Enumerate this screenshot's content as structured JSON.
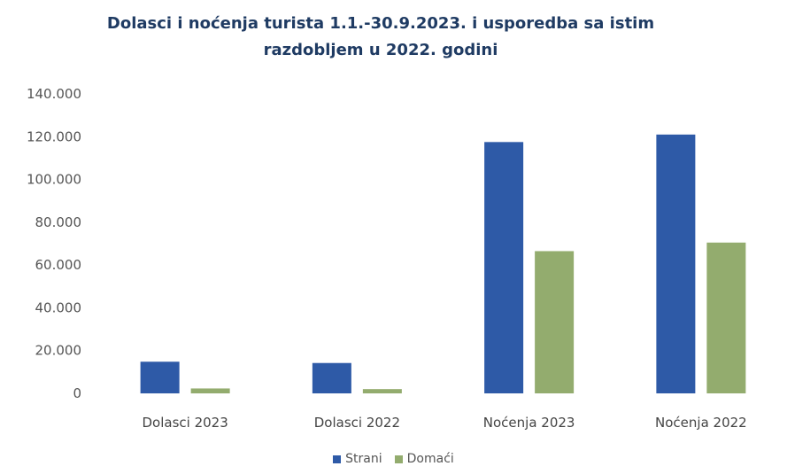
{
  "chart_data": {
    "type": "bar",
    "title_line1": "Dolasci i noćenja turista 1.1.-30.9.2023. i usporedba sa istim",
    "title_line2": "razdobljem u 2022. godini",
    "categories": [
      "Dolasci 2023",
      "Dolasci 2022",
      "Noćenja 2023",
      "Noćenja 2022"
    ],
    "series": [
      {
        "name": "Strani",
        "color": "#2e5aa7",
        "values": [
          14800,
          14200,
          117500,
          121000
        ]
      },
      {
        "name": "Domaći",
        "color": "#93ac6e",
        "values": [
          2300,
          2000,
          66500,
          70500
        ]
      }
    ],
    "ylim": [
      0,
      140000
    ],
    "yticks": [
      0,
      20000,
      40000,
      60000,
      80000,
      100000,
      120000,
      140000
    ],
    "ytick_labels": [
      "0",
      "20.000",
      "40.000",
      "60.000",
      "80.000",
      "100.000",
      "120.000",
      "140.000"
    ],
    "grid": false,
    "legend_position": "bottom"
  }
}
